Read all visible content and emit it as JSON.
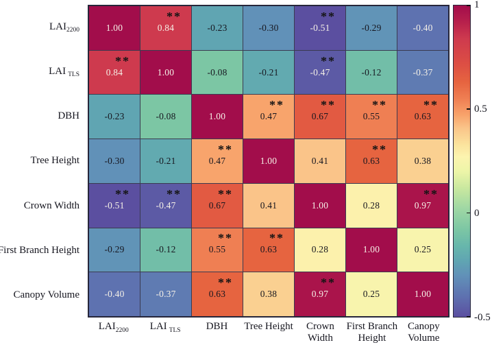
{
  "style": {
    "background": "#ffffff",
    "grid_line_color": "#3a3a50",
    "outer_border_color": "#26263a",
    "dark_text_color": "#16161f",
    "light_text_color": "#f6f1e7",
    "asterisk_color": "#141414",
    "light_text_positive_min": 0.8,
    "light_text_negative_max": -0.35
  },
  "chart_data": {
    "type": "heatmap",
    "title": "",
    "sig_marker": "**",
    "variables": [
      {
        "main": "LAI",
        "sub": "2200"
      },
      {
        "main": "LAI",
        "sub": "TLS",
        "sub_gap": true
      },
      {
        "main": "DBH"
      },
      {
        "main": "Tree Height"
      },
      {
        "main": "Crown Width",
        "col_lines": [
          "Crown",
          "Width"
        ]
      },
      {
        "main": "First Branch Height",
        "col_lines": [
          "First Branch",
          "Height"
        ]
      },
      {
        "main": "Canopy Volume",
        "col_lines": [
          "Canopy",
          "Volume"
        ]
      }
    ],
    "matrix": [
      [
        1.0,
        0.84,
        -0.23,
        -0.3,
        -0.51,
        -0.29,
        -0.4
      ],
      [
        0.84,
        1.0,
        -0.08,
        -0.21,
        -0.47,
        -0.12,
        -0.37
      ],
      [
        -0.23,
        -0.08,
        1.0,
        0.47,
        0.67,
        0.55,
        0.63
      ],
      [
        -0.3,
        -0.21,
        0.47,
        1.0,
        0.41,
        0.63,
        0.38
      ],
      [
        -0.51,
        -0.47,
        0.67,
        0.41,
        1.0,
        0.28,
        0.97
      ],
      [
        -0.29,
        -0.12,
        0.55,
        0.63,
        0.28,
        1.0,
        0.25
      ],
      [
        -0.4,
        -0.37,
        0.63,
        0.38,
        0.97,
        0.25,
        1.0
      ]
    ],
    "significance": [
      [
        0,
        1,
        0,
        0,
        1,
        0,
        0
      ],
      [
        1,
        0,
        0,
        0,
        1,
        0,
        0
      ],
      [
        0,
        0,
        0,
        1,
        1,
        1,
        1
      ],
      [
        0,
        0,
        1,
        0,
        0,
        1,
        0
      ],
      [
        1,
        1,
        1,
        0,
        0,
        0,
        1
      ],
      [
        0,
        0,
        1,
        1,
        0,
        0,
        0
      ],
      [
        0,
        0,
        1,
        0,
        1,
        0,
        0
      ]
    ],
    "value_range": [
      -0.5,
      1
    ],
    "colorbar": {
      "ticks": [
        {
          "value": 1,
          "label": "1"
        },
        {
          "value": 0.5,
          "label": "0.5"
        },
        {
          "value": 0,
          "label": "0"
        },
        {
          "value": -0.5,
          "label": "-0.5"
        }
      ]
    },
    "colormap_anchors": [
      {
        "value": -0.5,
        "color": "#5b4fa0"
      },
      {
        "value": -0.4,
        "color": "#5e72b0"
      },
      {
        "value": -0.3,
        "color": "#6191b8"
      },
      {
        "value": -0.23,
        "color": "#60a5b2"
      },
      {
        "value": -0.16,
        "color": "#67b6ac"
      },
      {
        "value": -0.08,
        "color": "#7cc6a4"
      },
      {
        "value": 0.02,
        "color": "#9ed7a4"
      },
      {
        "value": 0.12,
        "color": "#c9e89f"
      },
      {
        "value": 0.2,
        "color": "#edf5a8"
      },
      {
        "value": 0.27,
        "color": "#fcf4af"
      },
      {
        "value": 0.33,
        "color": "#fbe39d"
      },
      {
        "value": 0.41,
        "color": "#fac489"
      },
      {
        "value": 0.47,
        "color": "#f8a46c"
      },
      {
        "value": 0.55,
        "color": "#ef7f53"
      },
      {
        "value": 0.63,
        "color": "#e66440"
      },
      {
        "value": 0.72,
        "color": "#dc4e44"
      },
      {
        "value": 0.84,
        "color": "#ce3a4e"
      },
      {
        "value": 0.92,
        "color": "#b7204c"
      },
      {
        "value": 1.0,
        "color": "#a20d4b"
      }
    ]
  }
}
